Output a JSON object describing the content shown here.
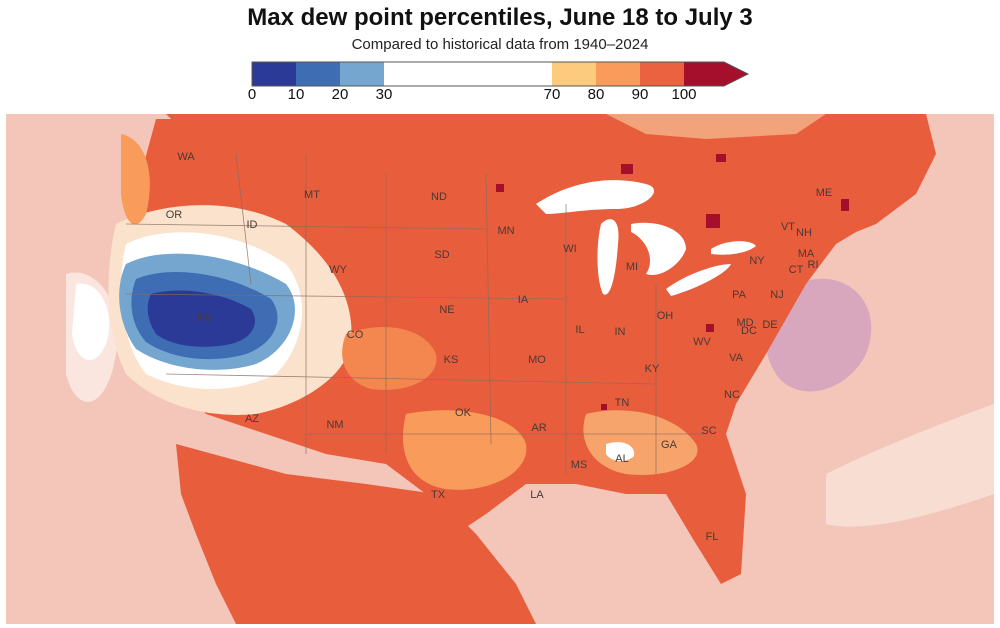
{
  "title": "Max dew point percentiles, June 18 to July 3",
  "subtitle": "Compared to historical data from 1940–2024",
  "legend": {
    "ticks": [
      "0",
      "10",
      "20",
      "30",
      "70",
      "80",
      "90",
      "100"
    ],
    "bins": [
      {
        "range": "0–10",
        "color": "#2b3a96"
      },
      {
        "range": "10–20",
        "color": "#3f6db4"
      },
      {
        "range": "20–30",
        "color": "#74a6d0"
      },
      {
        "range": "30–70",
        "color": "#ffffff"
      },
      {
        "range": "70–80",
        "color": "#fdcb7e"
      },
      {
        "range": "80–90",
        "color": "#f99b5a"
      },
      {
        "range": "90–100",
        "color": "#ea6240"
      },
      {
        "range": "100",
        "color": "#a50f2c"
      }
    ]
  },
  "colors": {
    "land_dominant": "#e85d3c",
    "ocean_tint": "#f3c6b9",
    "purple_patch": "#d9a7bd",
    "state_borders": "#8a6a60",
    "lakes": "#ffffff"
  },
  "states": {
    "WA": "WA",
    "OR": "OR",
    "MT": "MT",
    "ID": "ID",
    "WY": "WY",
    "NV": "NV",
    "CO": "CO",
    "AZ": "AZ",
    "NM": "NM",
    "ND": "ND",
    "SD": "SD",
    "NE": "NE",
    "KS": "KS",
    "OK": "OK",
    "TX": "TX",
    "MN": "MN",
    "IA": "IA",
    "MO": "MO",
    "AR": "AR",
    "LA": "LA",
    "WI": "WI",
    "IL": "IL",
    "MI": "MI",
    "IN": "IN",
    "OH": "OH",
    "KY": "KY",
    "TN": "TN",
    "MS": "MS",
    "AL": "AL",
    "GA": "GA",
    "FL": "FL",
    "SC": "SC",
    "NC": "NC",
    "VA": "VA",
    "WV": "WV",
    "PA": "PA",
    "NY": "NY",
    "VT": "VT",
    "NH": "NH",
    "ME": "ME",
    "MA": "MA",
    "CT": "CT",
    "RI": "RI",
    "NJ": "NJ",
    "MD": "MD",
    "DC": "DC",
    "DE": "DE"
  }
}
